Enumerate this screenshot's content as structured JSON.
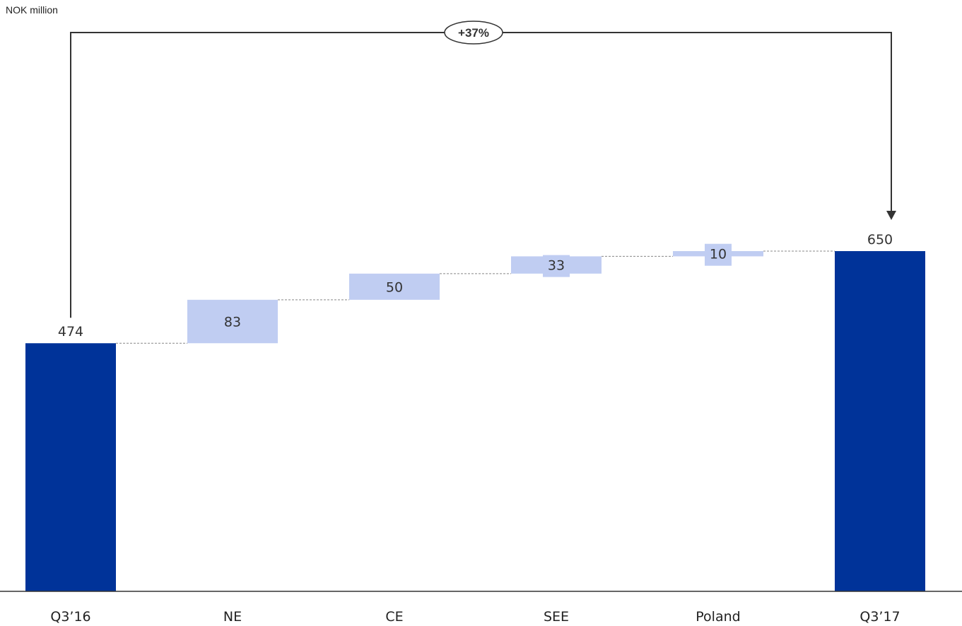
{
  "chart_data": {
    "type": "bar",
    "subtype": "waterfall",
    "unit_label": "NOK million",
    "categories": [
      "Q3’16",
      "NE",
      "CE",
      "SEE",
      "Poland",
      "Q3’17"
    ],
    "values": [
      474,
      83,
      50,
      33,
      10,
      650
    ],
    "kinds": [
      "total",
      "delta",
      "delta",
      "delta",
      "delta",
      "total"
    ],
    "labels": [
      "474",
      "83",
      "50",
      "33",
      "10",
      "650"
    ],
    "ylim": [
      0,
      700
    ],
    "grid": false,
    "change_badge": "+37%",
    "colors": {
      "total": "#003399",
      "delta": "#c0cdf2",
      "connector": "#888888",
      "axis": "#333333",
      "bracket": "#333333"
    }
  }
}
